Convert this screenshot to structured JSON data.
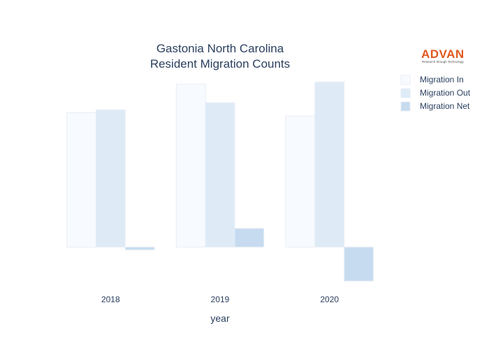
{
  "chart_data": {
    "type": "bar",
    "title_lines": [
      "Gastonia North Carolina",
      "Resident Migration Counts"
    ],
    "xlabel": "year",
    "ylabel": "",
    "categories": [
      "2018",
      "2019",
      "2020"
    ],
    "series": [
      {
        "name": "Migration In",
        "values": [
          194,
          235,
          189
        ],
        "color": "#f7fbff"
      },
      {
        "name": "Migration Out",
        "values": [
          198,
          208,
          238
        ],
        "color": "#deebf7"
      },
      {
        "name": "Migration Net",
        "values": [
          -4,
          27,
          -49
        ],
        "color": "#c6dbef"
      }
    ],
    "ylim": [
      -65,
      270
    ],
    "grid": false,
    "legend_position": "top-right"
  },
  "logo": {
    "name": "ADVAN",
    "tagline": "Research through Technology"
  },
  "colors": {
    "text": "#2a3f5f",
    "bar_outline": "#e8eef5",
    "logo": "#e0581f"
  }
}
